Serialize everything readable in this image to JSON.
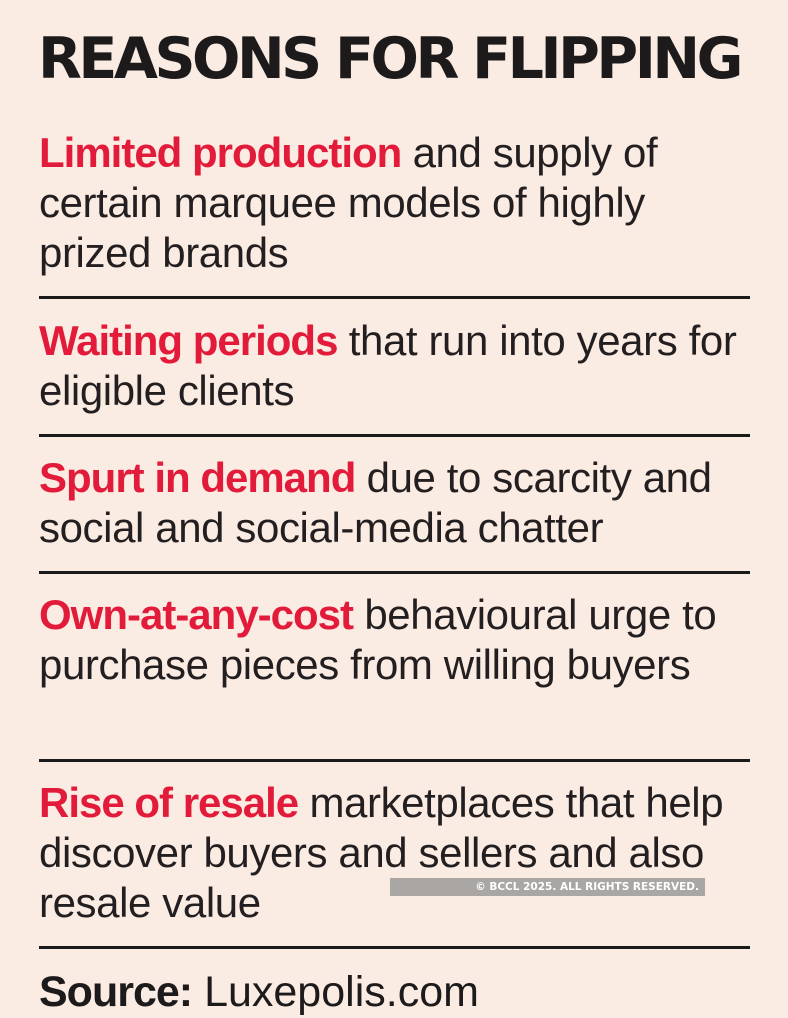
{
  "title": "REASONS FOR FLIPPING",
  "reasons": [
    {
      "highlight": "Limited production",
      "text": "and supply of certain marquee models of highly prized brands"
    },
    {
      "highlight": "Waiting periods",
      "text": "that run into years for eligible clients"
    },
    {
      "highlight": "Spurt in demand",
      "text": "due to scarcity and social and social-media chatter"
    },
    {
      "highlight": "Own-at-any-cost",
      "text": "behavioural urge to purchase pieces from willing buyers"
    },
    {
      "highlight": "Rise of resale",
      "text": "marketplaces that help discover buyers and sellers and also resale value"
    }
  ],
  "source": {
    "label": "Source:",
    "value": "Luxepolis.com"
  },
  "watermark": "© BCCL 2025. ALL RIGHTS RESERVED.",
  "colors": {
    "background": "#fbece3",
    "highlight": "#e31b3a",
    "text": "#231f20",
    "rule": "#1a1a1a"
  }
}
